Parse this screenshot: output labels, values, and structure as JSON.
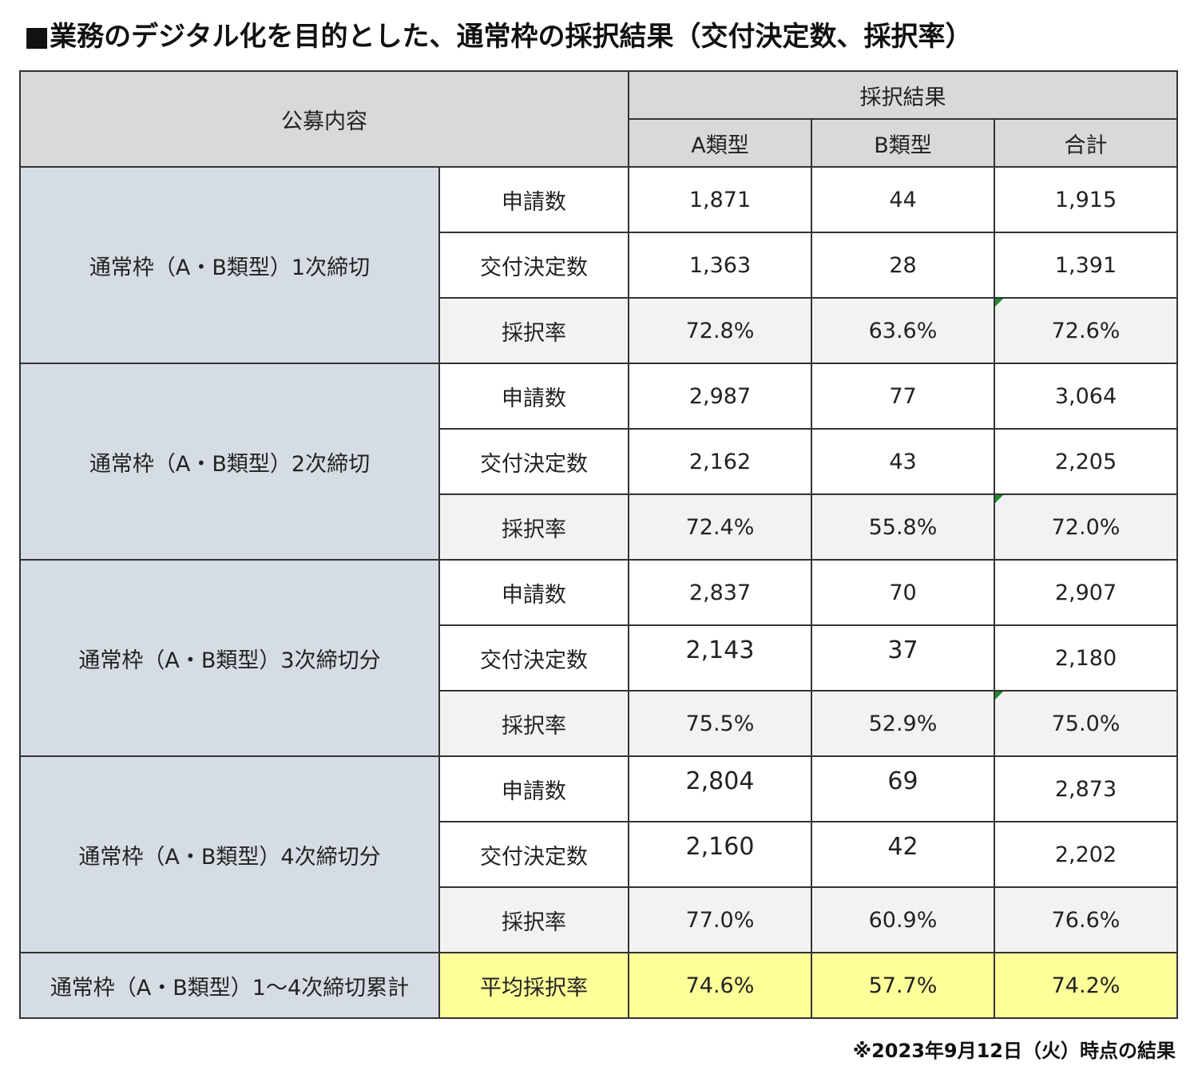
{
  "title": "■業務のデジタル化を目的とした、通常枠の採択結果（交付決定数、採択率）",
  "header": {
    "content": "公募内容",
    "result": "採択結果",
    "col_a": "A類型",
    "col_b": "B類型",
    "col_total": "合計"
  },
  "groups": [
    {
      "label": "通常枠（A・B類型）1次締切",
      "rows": [
        {
          "label": "申請数",
          "a": "1,871",
          "b": "44",
          "total": "1,915"
        },
        {
          "label": "交付決定数",
          "a": "1,363",
          "b": "28",
          "total": "1,391"
        },
        {
          "label": "採択率",
          "a": "72.8%",
          "b": "63.6%",
          "total": "72.6%"
        }
      ]
    },
    {
      "label": "通常枠（A・B類型）2次締切",
      "rows": [
        {
          "label": "申請数",
          "a": "2,987",
          "b": "77",
          "total": "3,064"
        },
        {
          "label": "交付決定数",
          "a": "2,162",
          "b": "43",
          "total": "2,205"
        },
        {
          "label": "採択率",
          "a": "72.4%",
          "b": "55.8%",
          "total": "72.0%"
        }
      ]
    },
    {
      "label": "通常枠（A・B類型）3次締切分",
      "rows": [
        {
          "label": "申請数",
          "a": "2,837",
          "b": "70",
          "total": "2,907"
        },
        {
          "label": "交付決定数",
          "a": "2,143",
          "b": "37",
          "total": "2,180"
        },
        {
          "label": "採択率",
          "a": "75.5%",
          "b": "52.9%",
          "total": "75.0%"
        }
      ]
    },
    {
      "label": "通常枠（A・B類型）4次締切分",
      "rows": [
        {
          "label": "申請数",
          "a": "2,804",
          "b": "69",
          "total": "2,873"
        },
        {
          "label": "交付決定数",
          "a": "2,160",
          "b": "42",
          "total": "2,202"
        },
        {
          "label": "採択率",
          "a": "77.0%",
          "b": "60.9%",
          "total": "76.6%"
        }
      ]
    }
  ],
  "summary": {
    "label": "通常枠（A・B類型）1〜4次締切累計",
    "row_label": "平均採択率",
    "a": "74.6%",
    "b": "57.7%",
    "total": "74.2%"
  },
  "note": "※2023年9月12日（火）時点の結果",
  "colors": {
    "header_bg": "#d9d9d9",
    "group_bg": "#d6dce4",
    "rate_bg": "#f2f2f2",
    "summary_bg": "#ffff99",
    "cell_marker": "#1e8a2e"
  }
}
